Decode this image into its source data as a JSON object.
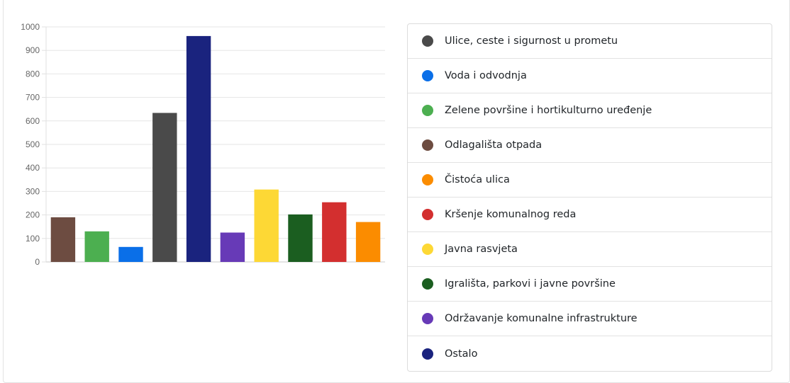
{
  "chart_data": {
    "type": "bar",
    "ylim": [
      0,
      1000
    ],
    "yticks": [
      0,
      100,
      200,
      300,
      400,
      500,
      600,
      700,
      800,
      900,
      1000
    ],
    "grid": true,
    "bars": [
      {
        "category": "Odlagališta otpada",
        "value": 190,
        "color": "#6d4c41"
      },
      {
        "category": "Zelene površine i hortikulturno uređenje",
        "value": 130,
        "color": "#4caf50"
      },
      {
        "category": "Voda i odvodnja",
        "value": 64,
        "color": "#0a6fe8"
      },
      {
        "category": "Ulice, ceste i sigurnost u prometu",
        "value": 634,
        "color": "#4a4a4a"
      },
      {
        "category": "Ostalo",
        "value": 961,
        "color": "#1a237e"
      },
      {
        "category": "Održavanje komunalne infrastrukture",
        "value": 125,
        "color": "#673ab7"
      },
      {
        "category": "Javna rasvjeta",
        "value": 308,
        "color": "#fdd835"
      },
      {
        "category": "Igrališta, parkovi i javne površine",
        "value": 202,
        "color": "#1b5e20"
      },
      {
        "category": "Kršenje komunalnog reda",
        "value": 254,
        "color": "#d32f2f"
      },
      {
        "category": "Čistoća ulica",
        "value": 170,
        "color": "#fb8c00"
      }
    ]
  },
  "legend": {
    "items": [
      {
        "label": "Ulice, ceste i sigurnost u prometu",
        "color": "#4a4a4a"
      },
      {
        "label": "Voda i odvodnja",
        "color": "#0a6fe8"
      },
      {
        "label": "Zelene površine i hortikulturno uređenje",
        "color": "#4caf50"
      },
      {
        "label": "Odlagališta otpada",
        "color": "#6d4c41"
      },
      {
        "label": "Čistoća ulica",
        "color": "#fb8c00"
      },
      {
        "label": "Kršenje komunalnog reda",
        "color": "#d32f2f"
      },
      {
        "label": "Javna rasvjeta",
        "color": "#fdd835"
      },
      {
        "label": "Igrališta, parkovi i javne površine",
        "color": "#1b5e20"
      },
      {
        "label": "Održavanje komunalne infrastrukture",
        "color": "#673ab7"
      },
      {
        "label": "Ostalo",
        "color": "#1a237e"
      }
    ]
  }
}
